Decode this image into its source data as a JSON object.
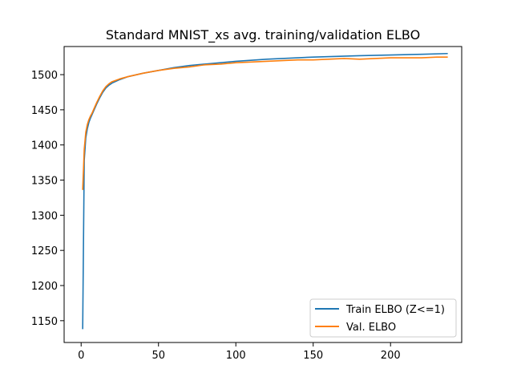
{
  "chart_data": {
    "type": "line",
    "title": "Standard MNIST_xs avg. training/validation ELBO",
    "xlabel": "",
    "ylabel": "",
    "xlim": [
      -11,
      246
    ],
    "ylim": [
      1119,
      1540
    ],
    "xticks": [
      0,
      50,
      100,
      150,
      200
    ],
    "yticks": [
      1150,
      1200,
      1250,
      1300,
      1350,
      1400,
      1450,
      1500
    ],
    "grid": false,
    "legend_position": "lower-right",
    "series": [
      {
        "name": "Train ELBO (Z<=1)",
        "color": "#1f77b4",
        "x": [
          1,
          2,
          3,
          4,
          5,
          6,
          7,
          8,
          10,
          12,
          14,
          16,
          18,
          20,
          25,
          30,
          40,
          50,
          60,
          70,
          80,
          100,
          120,
          150,
          180,
          200,
          220,
          237
        ],
        "y": [
          1138,
          1378,
          1410,
          1423,
          1432,
          1438,
          1443,
          1448,
          1458,
          1467,
          1475,
          1481,
          1485,
          1488,
          1493,
          1497,
          1502,
          1506,
          1510,
          1513,
          1515,
          1519,
          1522,
          1525,
          1527,
          1528,
          1529,
          1530
        ]
      },
      {
        "name": "Val. ELBO",
        "color": "#ff7f0e",
        "x": [
          1,
          2,
          3,
          4,
          5,
          6,
          7,
          8,
          10,
          12,
          14,
          16,
          18,
          20,
          25,
          30,
          40,
          50,
          60,
          70,
          80,
          90,
          100,
          110,
          120,
          130,
          140,
          150,
          160,
          170,
          180,
          190,
          200,
          210,
          220,
          230,
          237
        ],
        "y": [
          1336,
          1394,
          1418,
          1429,
          1436,
          1441,
          1445,
          1450,
          1460,
          1469,
          1477,
          1483,
          1487,
          1490,
          1494,
          1497,
          1502,
          1506,
          1509,
          1511,
          1514,
          1515,
          1517,
          1518,
          1519,
          1520,
          1521,
          1521,
          1522,
          1523,
          1522,
          1523,
          1524,
          1524,
          1524,
          1525,
          1525
        ]
      }
    ]
  }
}
